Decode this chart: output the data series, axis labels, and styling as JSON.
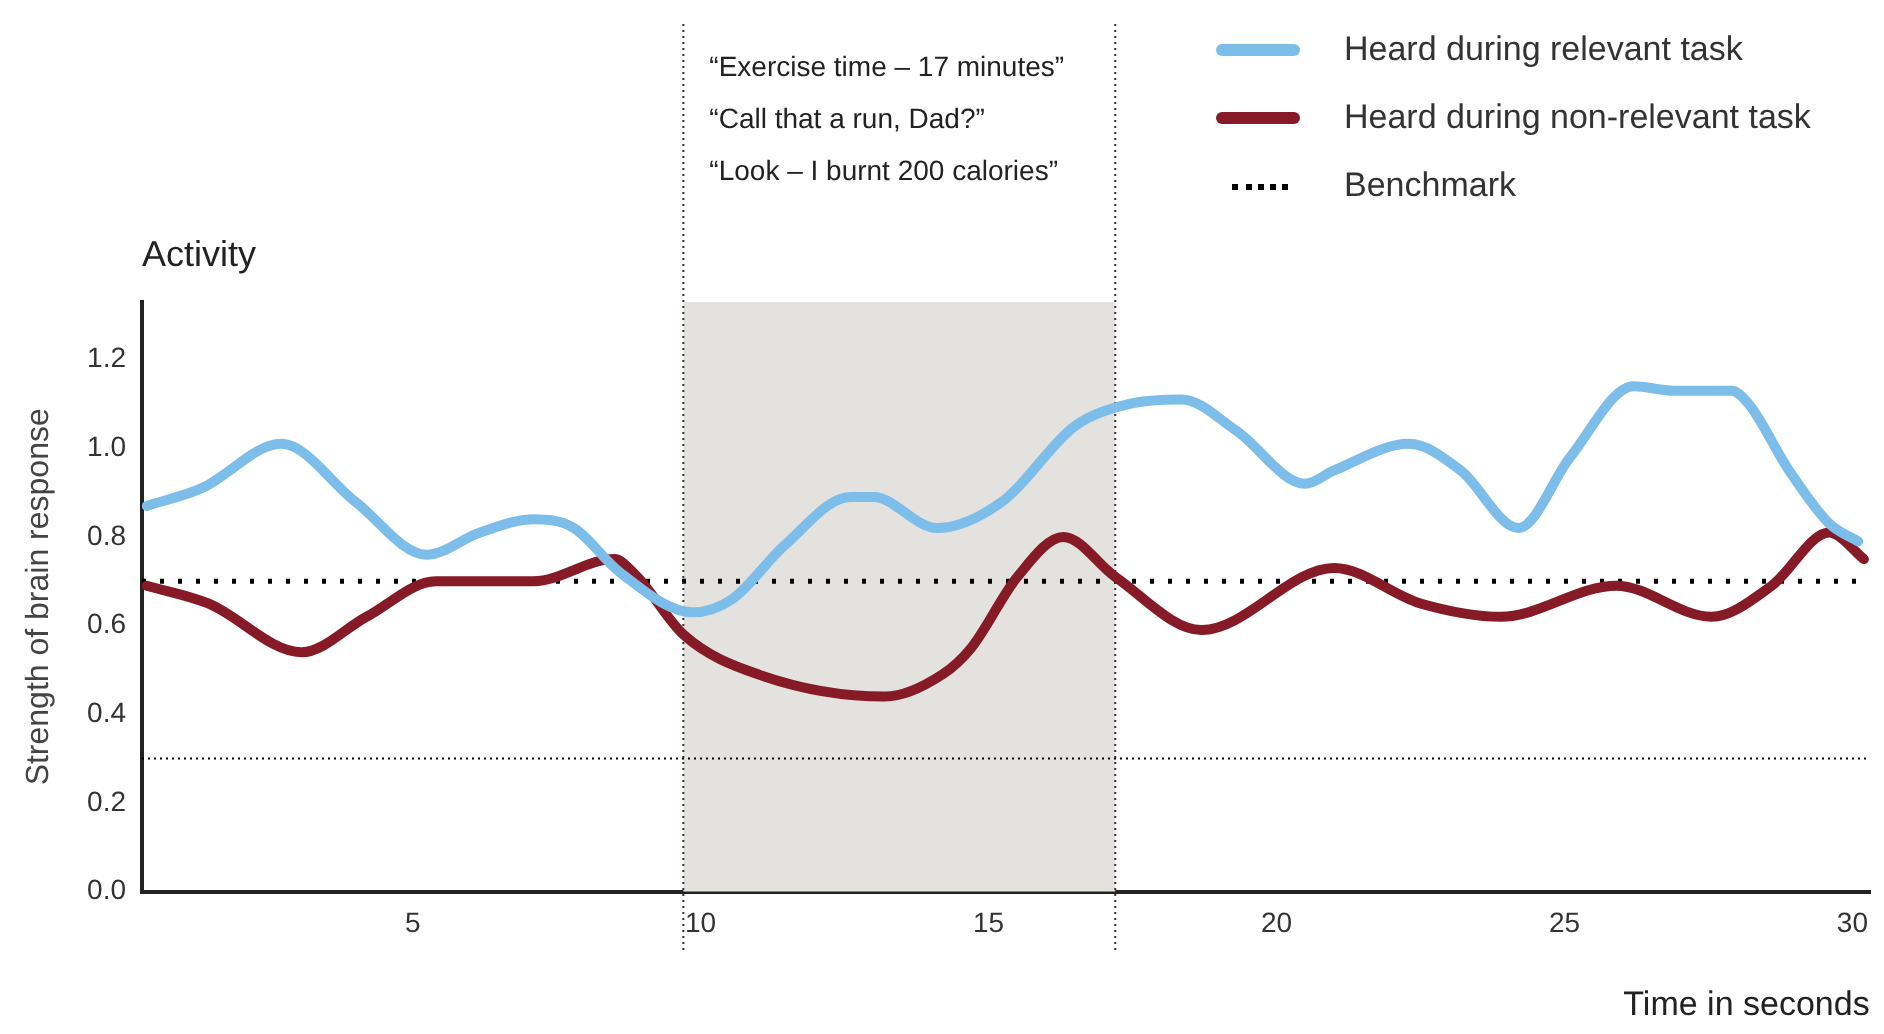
{
  "chart_data": {
    "type": "line",
    "title": "Activity",
    "xlabel": "Time in seconds",
    "ylabel": "Strength of brain response",
    "annotations": [
      "“Exercise time – 17 minutes”",
      "“Call that a run, Dad?”",
      "“Look – I burnt 200 calories”"
    ],
    "series": [
      {
        "name": "Heard during relevant task",
        "color": "#7dbdea",
        "x": [
          0.38,
          1.34,
          2.72,
          4.0,
          5.24,
          6.17,
          7.1,
          7.8,
          8.6,
          9.86,
          10.55,
          11.45,
          12.6,
          13.0,
          14.1,
          15.24,
          16.5,
          17.45,
          18.35,
          19.3,
          20.5,
          21.0,
          22.3,
          23.2,
          24.2,
          25.1,
          26.2,
          26.9,
          27.9,
          28.2,
          28.9,
          29.6,
          30.1
        ],
        "values": [
          0.87,
          0.91,
          1.01,
          0.88,
          0.76,
          0.81,
          0.84,
          0.82,
          0.72,
          0.63,
          0.66,
          0.78,
          0.89,
          0.89,
          0.82,
          0.88,
          1.05,
          1.1,
          1.11,
          1.04,
          0.92,
          0.95,
          1.01,
          0.95,
          0.82,
          0.98,
          1.14,
          1.13,
          1.13,
          1.1,
          0.95,
          0.83,
          0.79
        ]
      },
      {
        "name": "Heard during non-relevant task",
        "color": "#861a26",
        "x": [
          0.38,
          1.45,
          3.07,
          4.2,
          5.4,
          7.1,
          8.5,
          8.9,
          9.7,
          11.0,
          13.2,
          14.2,
          14.7,
          15.5,
          16.3,
          17.2,
          18.7,
          21.0,
          22.5,
          23.9,
          25.9,
          27.55,
          28.6,
          29.6,
          30.2
        ],
        "values": [
          0.69,
          0.65,
          0.54,
          0.62,
          0.7,
          0.7,
          0.75,
          0.71,
          0.58,
          0.49,
          0.44,
          0.49,
          0.55,
          0.71,
          0.8,
          0.71,
          0.59,
          0.73,
          0.65,
          0.62,
          0.69,
          0.62,
          0.69,
          0.81,
          0.75
        ]
      }
    ],
    "ref_lines": [
      {
        "axis": "y",
        "value": 0.7,
        "label": "Benchmark",
        "color": "#000000",
        "line_style": "dotted"
      },
      {
        "axis": "y",
        "value": 0.3,
        "color": "#000000",
        "line_style": "dotted"
      },
      {
        "axis": "x",
        "value": 9.7,
        "color": "#333333",
        "line_style": "dotted"
      },
      {
        "axis": "x",
        "value": 17.2,
        "color": "#333333",
        "line_style": "dotted"
      }
    ],
    "bands": [
      {
        "axis": "x",
        "from": 9.7,
        "to": 17.2,
        "color": "#e4e2de"
      }
    ],
    "xlim": [
      0.3,
      30.3
    ],
    "xticks": [
      5,
      10,
      15,
      20,
      25,
      30
    ],
    "ylim": [
      0,
      1.33
    ],
    "yticks": [
      {
        "value": 0,
        "label": "0.0"
      },
      {
        "value": 0.2,
        "label": "0.2"
      },
      {
        "value": 0.4,
        "label": "0.4"
      },
      {
        "value": 0.6,
        "label": "0.6"
      },
      {
        "value": 0.8,
        "label": "0.8"
      },
      {
        "value": 1,
        "label": "1.0"
      },
      {
        "value": 1.2,
        "label": "1.2"
      }
    ],
    "grid": false,
    "legend": "top right",
    "marker": "none",
    "line_style": "solid"
  }
}
